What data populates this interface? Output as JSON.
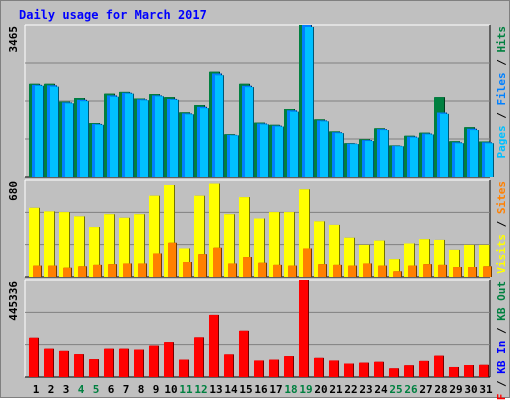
{
  "title": "Daily usage for March 2017",
  "colors": {
    "title": "#0000ff",
    "panel_bg": "#c0c0c0",
    "hits": "#008040",
    "files": "#0080ff",
    "pages": "#00c0ff",
    "visits": "#ffff00",
    "sites": "#ff8000",
    "kbf": "#ff0000",
    "kbin": "#0000ff",
    "kbout": "#008040"
  },
  "chart_data": [
    {
      "type": "bar",
      "panel": "top",
      "ymax_label": "3465",
      "ylim": [
        0,
        3465
      ],
      "legend": [
        {
          "name": "Pages",
          "color": "#00c0ff"
        },
        {
          "name": "Files",
          "color": "#0080ff"
        },
        {
          "name": "Hits",
          "color": "#008040"
        }
      ],
      "categories": [
        "1",
        "2",
        "3",
        "4",
        "5",
        "6",
        "7",
        "8",
        "9",
        "10",
        "11",
        "12",
        "13",
        "14",
        "15",
        "16",
        "17",
        "18",
        "19",
        "20",
        "21",
        "22",
        "23",
        "24",
        "25",
        "26",
        "27",
        "28",
        "29",
        "30",
        "31"
      ],
      "weekend_days": [
        "4",
        "5",
        "11",
        "12",
        "18",
        "19",
        "25",
        "26"
      ],
      "series": [
        {
          "name": "Hits",
          "values": [
            2125,
            2125,
            1720,
            1800,
            1230,
            1900,
            1940,
            1790,
            1890,
            1820,
            1475,
            1640,
            2400,
            975,
            2125,
            1240,
            1190,
            1550,
            3465,
            1315,
            1040,
            770,
            860,
            1110,
            720,
            940,
            1010,
            1820,
            815,
            1135,
            810
          ]
        },
        {
          "name": "Files",
          "values": [
            2100,
            2090,
            1700,
            1760,
            1210,
            1860,
            1920,
            1770,
            1860,
            1780,
            1450,
            1600,
            2360,
            960,
            2080,
            1220,
            1170,
            1520,
            3465,
            1290,
            1020,
            760,
            840,
            1090,
            710,
            920,
            990,
            1470,
            790,
            1100,
            790
          ]
        },
        {
          "name": "Pages",
          "values": [
            2080,
            2060,
            1680,
            1730,
            1190,
            1830,
            1900,
            1750,
            1840,
            1760,
            1430,
            1570,
            2320,
            950,
            2050,
            1200,
            1150,
            1490,
            3420,
            1270,
            1000,
            750,
            820,
            1070,
            700,
            900,
            970,
            1440,
            770,
            1070,
            770
          ]
        }
      ]
    },
    {
      "type": "bar",
      "panel": "middle",
      "ymax_label": "680",
      "ylim": [
        0,
        680
      ],
      "legend": [
        {
          "name": "Visits",
          "color": "#ffff00"
        },
        {
          "name": "Sites",
          "color": "#ff8000"
        }
      ],
      "categories": [
        "1",
        "2",
        "3",
        "4",
        "5",
        "6",
        "7",
        "8",
        "9",
        "10",
        "11",
        "12",
        "13",
        "14",
        "15",
        "16",
        "17",
        "18",
        "19",
        "20",
        "21",
        "22",
        "23",
        "24",
        "25",
        "26",
        "27",
        "28",
        "29",
        "30",
        "31"
      ],
      "series": [
        {
          "name": "Visits",
          "values": [
            485,
            460,
            455,
            425,
            350,
            440,
            415,
            440,
            570,
            645,
            200,
            570,
            655,
            440,
            560,
            410,
            455,
            455,
            615,
            390,
            365,
            275,
            225,
            255,
            125,
            235,
            265,
            260,
            190,
            225,
            225
          ]
        },
        {
          "name": "Sites",
          "values": [
            80,
            80,
            65,
            75,
            85,
            90,
            95,
            95,
            165,
            240,
            105,
            160,
            205,
            95,
            140,
            100,
            85,
            80,
            200,
            90,
            85,
            80,
            95,
            80,
            40,
            80,
            90,
            85,
            70,
            70,
            75
          ]
        }
      ]
    },
    {
      "type": "bar",
      "panel": "bottom",
      "ymax_label": "445336",
      "ylim": [
        0,
        445336
      ],
      "legend": [
        {
          "name": "KB F",
          "color": "#ff0000"
        },
        {
          "name": "KB In",
          "color": "#0000ff"
        },
        {
          "name": "KB Out",
          "color": "#008040"
        }
      ],
      "categories": [
        "1",
        "2",
        "3",
        "4",
        "5",
        "6",
        "7",
        "8",
        "9",
        "10",
        "11",
        "12",
        "13",
        "14",
        "15",
        "16",
        "17",
        "18",
        "19",
        "20",
        "21",
        "22",
        "23",
        "24",
        "25",
        "26",
        "27",
        "28",
        "29",
        "30",
        "31"
      ],
      "series": [
        {
          "name": "KB F",
          "values": [
            180000,
            130000,
            120000,
            105000,
            82000,
            130000,
            130000,
            126000,
            144000,
            160000,
            80000,
            182000,
            285000,
            104000,
            212000,
            76000,
            80000,
            96000,
            445336,
            88000,
            76000,
            62000,
            66000,
            70000,
            40000,
            54000,
            74000,
            98000,
            46000,
            55000,
            56000
          ]
        }
      ]
    }
  ]
}
